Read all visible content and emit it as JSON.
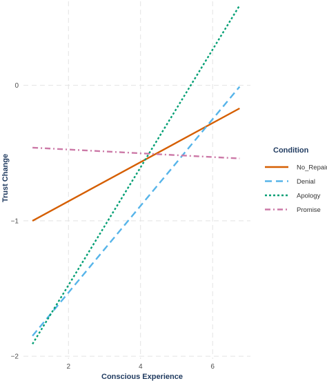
{
  "chart_data": {
    "type": "line",
    "xlabel": "Conscious Experience",
    "ylabel": "Trust Change",
    "xlim": [
      0.75,
      7.05
    ],
    "ylim": [
      -2.02,
      0.62
    ],
    "x_ticks": [
      2,
      4,
      6
    ],
    "y_ticks": [
      -2,
      -1,
      0
    ],
    "x_tick_labels": [
      "2",
      "4",
      "6"
    ],
    "y_tick_labels": [
      "−2",
      "−1",
      "0"
    ],
    "grid": true,
    "legend": {
      "title": "Condition",
      "position": "right"
    },
    "series": [
      {
        "name": "No_Repair",
        "color": "#d55e00",
        "dash": "solid",
        "x": [
          1,
          6.75
        ],
        "y": [
          -1.0,
          -0.17
        ]
      },
      {
        "name": "Denial",
        "color": "#56b4e9",
        "dash": "longdash",
        "x": [
          1,
          6.75
        ],
        "y": [
          -1.85,
          -0.01
        ]
      },
      {
        "name": "Apology",
        "color": "#009e73",
        "dash": "dotted",
        "x": [
          1,
          6.75
        ],
        "y": [
          -1.91,
          0.59
        ]
      },
      {
        "name": "Promise",
        "color": "#cc79a7",
        "dash": "dotdash",
        "x": [
          1,
          6.75
        ],
        "y": [
          -0.46,
          -0.54
        ]
      }
    ]
  }
}
